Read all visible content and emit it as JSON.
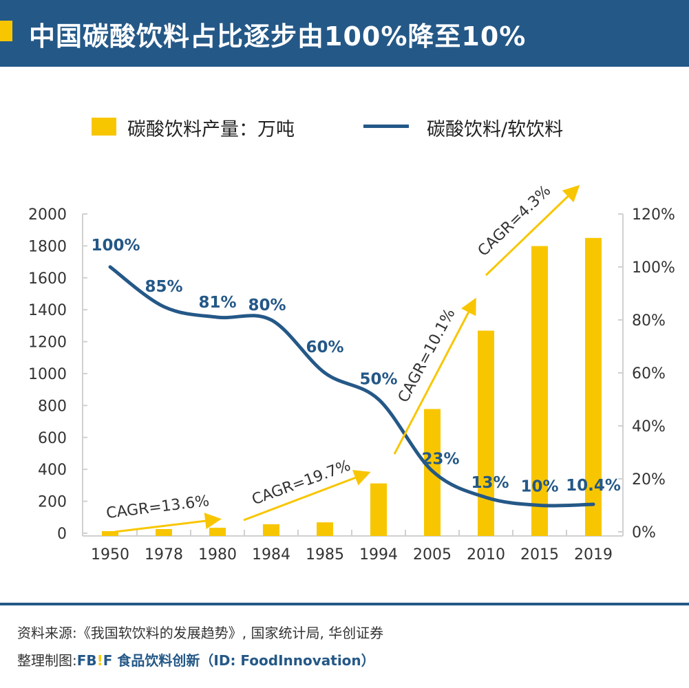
{
  "header": {
    "title": "中国碳酸饮料占比逐步由100%降至10%"
  },
  "chart_data": {
    "type": "bar+line",
    "title": "中国碳酸饮料占比逐步由100%降至10%",
    "categories": [
      "1950",
      "1978",
      "1980",
      "1984",
      "1985",
      "1994",
      "2005",
      "2010",
      "2015",
      "2019"
    ],
    "series": [
      {
        "name": "碳酸饮料产量：万吨",
        "type": "bar",
        "axis": "left",
        "color": "#f8c600",
        "values": [
          13,
          26,
          34,
          56,
          68,
          312,
          778,
          1269,
          1799,
          1850
        ]
      },
      {
        "name": "碳酸饮料/软饮料",
        "type": "line",
        "axis": "right",
        "color": "#245887",
        "values": [
          100,
          85,
          81,
          80,
          60,
          50,
          23,
          13,
          10,
          10.4
        ],
        "labels": [
          "100%",
          "85%",
          "81%",
          "80%",
          "60%",
          "50%",
          "23%",
          "13%",
          "10%",
          "10.4%"
        ]
      }
    ],
    "left_axis": {
      "ylim": [
        0,
        2000
      ],
      "ticks": [
        "0",
        "200",
        "400",
        "600",
        "800",
        "1000",
        "1200",
        "1400",
        "1600",
        "1800",
        "2000"
      ]
    },
    "right_axis": {
      "ylim": [
        0,
        120
      ],
      "ticks": [
        "0%",
        "20%",
        "40%",
        "60%",
        "80%",
        "100%",
        "120%"
      ]
    },
    "annotations": [
      "CAGR=13.6%",
      "CAGR=19.7%",
      "CAGR=10.1%",
      "CAGR=4.3%"
    ],
    "legend": "top",
    "grid": false
  },
  "footer": {
    "source": "资料来源:《我国软饮料的发展趋势》, 国家统计局, 华创证券",
    "credit_label": "整理制图:",
    "brand_fb": "FB",
    "brand_ex": "!",
    "brand_f": "F",
    "brand_text": "食品饮料创新（ID: FoodInnovation）"
  }
}
